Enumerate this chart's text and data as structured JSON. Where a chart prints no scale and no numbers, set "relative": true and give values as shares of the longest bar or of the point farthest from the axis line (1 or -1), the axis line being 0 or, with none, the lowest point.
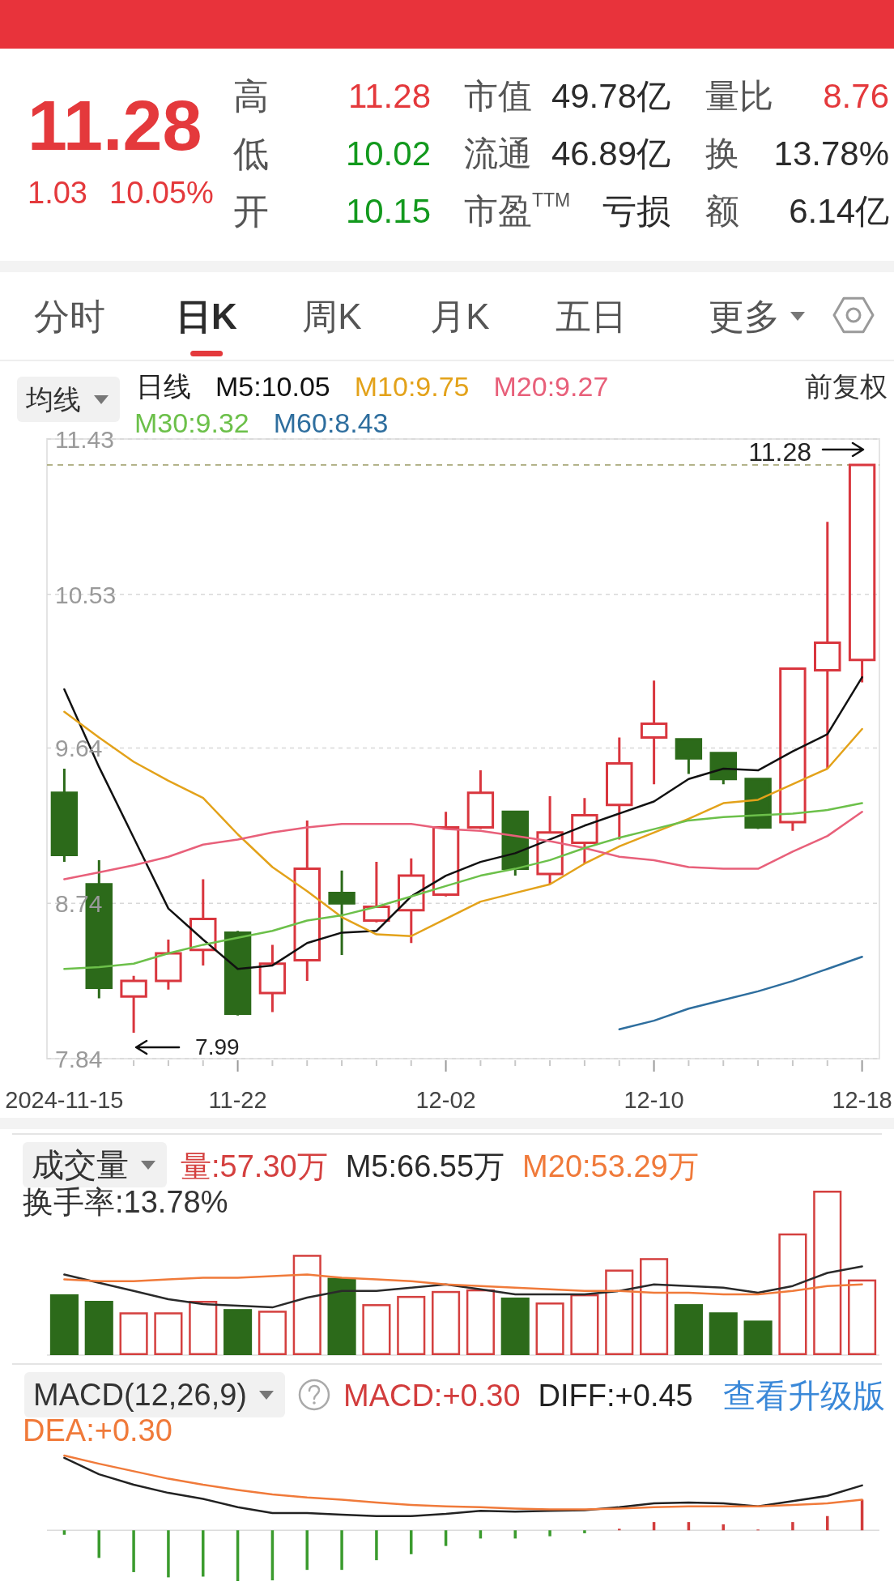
{
  "chart_data": [
    {
      "type": "other",
      "annotations": [
        "11.28",
        "1.03",
        "10.05%",
        "高",
        "11.28",
        "低",
        "10.02",
        "开",
        "10.15",
        "市值",
        "49.78亿",
        "流通",
        "46.89亿",
        "市盈$^{TTM}$",
        "亏损",
        "量比",
        "8.76",
        "换",
        "13.78%",
        "额",
        "6.14亿",
        "分时",
        "日K",
        "周K",
        "月K",
        "五日",
        "更多"
      ]
    },
    {
      "type": "candlestick",
      "title": "均线",
      "subtitle": "日线",
      "legend": "top",
      "grid": "y",
      "categories": [
        "2024-11-15",
        null,
        null,
        null,
        null,
        "11-22",
        null,
        null,
        null,
        null,
        null,
        "12-02",
        null,
        null,
        null,
        null,
        null,
        "12-10",
        null,
        null,
        null,
        null,
        null,
        "12-18"
      ],
      "ohlc": [
        [
          9.38,
          9.52,
          8.98,
          9.02
        ],
        [
          8.85,
          8.99,
          8.19,
          8.25
        ],
        [
          8.2,
          8.32,
          7.99,
          8.29
        ],
        [
          8.29,
          8.53,
          8.24,
          8.45
        ],
        [
          8.47,
          8.88,
          8.38,
          8.65
        ],
        [
          8.57,
          8.58,
          8.09,
          8.1
        ],
        [
          8.22,
          8.5,
          8.11,
          8.39
        ],
        [
          8.41,
          9.22,
          8.29,
          8.94
        ],
        [
          8.8,
          8.93,
          8.44,
          8.74
        ],
        [
          8.64,
          8.98,
          8.63,
          8.72
        ],
        [
          8.7,
          9.0,
          8.51,
          8.9
        ],
        [
          8.79,
          9.27,
          8.78,
          9.18
        ],
        [
          9.18,
          9.51,
          9.17,
          9.38
        ],
        [
          9.27,
          9.27,
          8.9,
          8.94
        ],
        [
          8.91,
          9.36,
          8.85,
          9.15
        ],
        [
          9.09,
          9.35,
          8.97,
          9.25
        ],
        [
          9.31,
          9.7,
          9.11,
          9.55
        ],
        [
          9.7,
          10.03,
          9.43,
          9.78
        ],
        [
          9.69,
          9.69,
          9.49,
          9.58
        ],
        [
          9.61,
          9.61,
          9.43,
          9.46
        ],
        [
          9.46,
          9.46,
          9.17,
          9.18
        ],
        [
          9.21,
          10.1,
          9.16,
          10.1
        ],
        [
          10.09,
          10.95,
          9.52,
          10.25
        ],
        [
          10.15,
          11.28,
          10.02,
          11.28
        ]
      ],
      "colors": [
        "#2c6a1a",
        "#2c6a1a",
        "#d9363e",
        "#d9363e",
        "#d9363e",
        "#2c6a1a",
        "#d9363e",
        "#d9363e",
        "#2c6a1a",
        "#d9363e",
        "#d9363e",
        "#d9363e",
        "#d9363e",
        "#2c6a1a",
        "#d9363e",
        "#d9363e",
        "#d9363e",
        "#d9363e",
        "#2c6a1a",
        "#2c6a1a",
        "#2c6a1a",
        "#d9363e",
        "#d9363e",
        "#d9363e"
      ],
      "ylim": [
        7.84,
        11.43
      ],
      "yticks": [
        7.84,
        8.74,
        9.64,
        10.53,
        11.43
      ],
      "ref_lines": [
        {
          "axis": "y",
          "value": 11.28,
          "label": "11.28",
          "color": "#b3b38a",
          "line_style": "dashed"
        }
      ],
      "annotations": [
        "前复权",
        "7.99"
      ],
      "series": [
        {
          "name": "M5:10.05",
          "type": "line",
          "color": "#111111",
          "values": [
            9.98,
            9.53,
            9.12,
            8.71,
            8.53,
            8.36,
            8.38,
            8.51,
            8.57,
            8.58,
            8.78,
            8.9,
            8.98,
            9.03,
            9.11,
            9.19,
            9.26,
            9.33,
            9.46,
            9.52,
            9.51,
            9.62,
            9.72,
            10.05
          ]
        },
        {
          "name": "M10:9.75",
          "type": "line",
          "color": "#e3a21a",
          "values": [
            9.85,
            9.7,
            9.56,
            9.45,
            9.35,
            9.14,
            8.95,
            8.81,
            8.66,
            8.56,
            8.55,
            8.65,
            8.75,
            8.8,
            8.85,
            8.97,
            9.07,
            9.15,
            9.23,
            9.32,
            9.34,
            9.43,
            9.52,
            9.75
          ]
        },
        {
          "name": "M20:9.27",
          "type": "line",
          "color": "#e8607a",
          "values": [
            8.88,
            8.92,
            8.96,
            9.01,
            9.08,
            9.11,
            9.15,
            9.18,
            9.2,
            9.2,
            9.2,
            9.17,
            9.16,
            9.13,
            9.1,
            9.06,
            9.01,
            8.99,
            8.95,
            8.94,
            8.94,
            9.04,
            9.13,
            9.27
          ]
        },
        {
          "name": "M30:9.32",
          "type": "line",
          "color": "#6cc04a",
          "values": [
            8.36,
            8.37,
            8.39,
            8.45,
            8.5,
            8.54,
            8.58,
            8.64,
            8.67,
            8.72,
            8.78,
            8.84,
            8.9,
            8.94,
            8.99,
            9.06,
            9.12,
            9.17,
            9.22,
            9.24,
            9.25,
            9.26,
            9.28,
            9.32
          ]
        },
        {
          "name": "M60:8.43",
          "type": "line",
          "color": "#2e6e9e",
          "values": [
            null,
            null,
            null,
            null,
            null,
            null,
            null,
            null,
            null,
            null,
            null,
            null,
            null,
            null,
            null,
            null,
            8.01,
            8.06,
            8.13,
            8.18,
            8.23,
            8.29,
            8.36,
            8.43
          ]
        }
      ]
    },
    {
      "type": "bar",
      "title": "成交量",
      "relative": true,
      "legend": "top",
      "tick_labels": false,
      "categories": [
        null,
        null,
        null,
        null,
        null,
        null,
        null,
        null,
        null,
        null,
        null,
        null,
        null,
        null,
        null,
        null,
        null,
        null,
        null,
        null,
        null,
        null,
        null,
        null
      ],
      "annotations": [
        "换手率:13.78%"
      ],
      "series": [
        {
          "name": "量:57.30万",
          "color": "#d4403f",
          "colors": [
            "#2c6a1a",
            "#2c6a1a",
            "#d4403f",
            "#d4403f",
            "#d4403f",
            "#2c6a1a",
            "#d4403f",
            "#d4403f",
            "#2c6a1a",
            "#d4403f",
            "#d4403f",
            "#d4403f",
            "#d4403f",
            "#2c6a1a",
            "#d4403f",
            "#d4403f",
            "#d4403f",
            "#d4403f",
            "#2c6a1a",
            "#2c6a1a",
            "#2c6a1a",
            "#d4403f",
            "#d4403f",
            "#d4403f"
          ],
          "values": [
            0.37,
            0.33,
            0.26,
            0.26,
            0.33,
            0.28,
            0.27,
            0.61,
            0.47,
            0.31,
            0.36,
            0.39,
            0.4,
            0.35,
            0.32,
            0.37,
            0.52,
            0.59,
            0.31,
            0.26,
            0.21,
            0.74,
            1,
            0.46
          ]
        },
        {
          "name": "M5:66.55万",
          "type": "line",
          "color": "#2a2a2a",
          "values": [
            0.49,
            0.44,
            0.39,
            0.34,
            0.31,
            0.3,
            0.29,
            0.35,
            0.39,
            0.39,
            0.41,
            0.43,
            0.4,
            0.37,
            0.37,
            0.37,
            0.39,
            0.43,
            0.42,
            0.41,
            0.38,
            0.42,
            0.5,
            0.54
          ]
        },
        {
          "name": "M20:53.29万",
          "type": "line",
          "color": "#f07a3a",
          "values": [
            0.46,
            0.45,
            0.45,
            0.46,
            0.47,
            0.47,
            0.48,
            0.49,
            0.47,
            0.46,
            0.45,
            0.43,
            0.42,
            0.41,
            0.4,
            0.39,
            0.39,
            0.38,
            0.38,
            0.37,
            0.37,
            0.39,
            0.42,
            0.43
          ]
        }
      ]
    },
    {
      "type": "bar",
      "title": "MACD(12,26,9)",
      "relative": true,
      "legend": "top",
      "tick_labels": false,
      "categories": [
        null,
        null,
        null,
        null,
        null,
        null,
        null,
        null,
        null,
        null,
        null,
        null,
        null,
        null,
        null,
        null,
        null,
        null,
        null,
        null,
        null,
        null,
        null,
        null
      ],
      "annotations": [
        "查看升级版"
      ],
      "series": [
        {
          "name": "MACD:+0.30",
          "color": "#d23c3c",
          "colors": [
            "#3b9b2e",
            "#3b9b2e",
            "#3b9b2e",
            "#3b9b2e",
            "#3b9b2e",
            "#3b9b2e",
            "#3b9b2e",
            "#3b9b2e",
            "#3b9b2e",
            "#3b9b2e",
            "#3b9b2e",
            "#3b9b2e",
            "#3b9b2e",
            "#3b9b2e",
            "#3b9b2e",
            "#3b9b2e",
            "#d23c3c",
            "#d23c3c",
            "#d23c3c",
            "#d23c3c",
            "#d23c3c",
            "#d23c3c",
            "#d23c3c",
            "#d23c3c"
          ],
          "values": [
            -0.06,
            -0.37,
            -0.56,
            -0.63,
            -0.62,
            -0.68,
            -0.67,
            -0.53,
            -0.53,
            -0.4,
            -0.32,
            -0.21,
            -0.11,
            -0.11,
            -0.08,
            -0.04,
            0.02,
            0.11,
            0.11,
            0.08,
            0.01,
            0.11,
            0.19,
            0.41
          ]
        },
        {
          "name": "DIFF:+0.45",
          "type": "line",
          "color": "#222222",
          "values": [
            0.97,
            0.75,
            0.61,
            0.5,
            0.42,
            0.31,
            0.23,
            0.23,
            0.21,
            0.19,
            0.19,
            0.22,
            0.26,
            0.25,
            0.26,
            0.27,
            0.31,
            0.36,
            0.37,
            0.36,
            0.32,
            0.39,
            0.46,
            0.6
          ]
        },
        {
          "name": "DEA:+0.30",
          "type": "line",
          "color": "#f07a3a",
          "values": [
            1,
            0.89,
            0.79,
            0.69,
            0.61,
            0.54,
            0.48,
            0.44,
            0.41,
            0.37,
            0.34,
            0.32,
            0.31,
            0.29,
            0.28,
            0.28,
            0.29,
            0.31,
            0.32,
            0.32,
            0.32,
            0.34,
            0.36,
            0.41
          ]
        }
      ]
    }
  ]
}
